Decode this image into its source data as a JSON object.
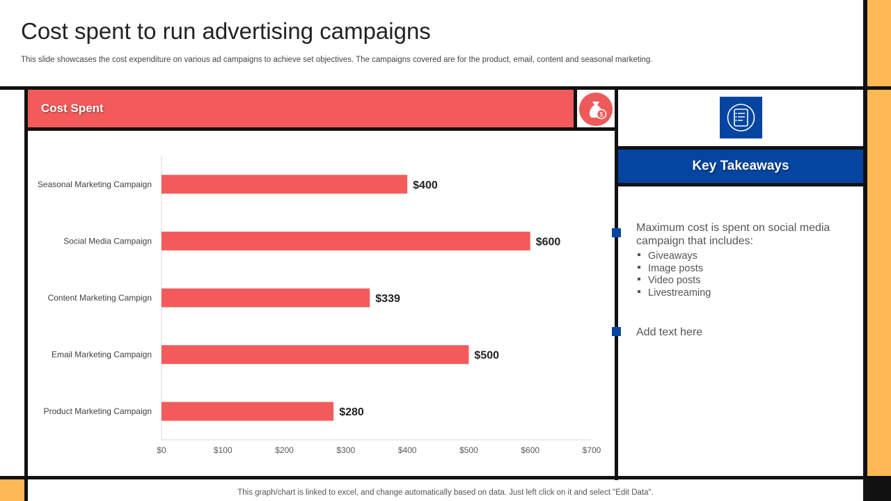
{
  "page": {
    "title": "Cost spent to run advertising campaigns",
    "subtitle": "This slide showcases the cost expenditure on various ad campaigns to achieve set objectives. The campaigns covered are for the product, email, content and seasonal marketing.",
    "footer_note": "This graph/chart is linked to excel,  and change automatically based on data. Just left click on it and select \"Edit Data\"."
  },
  "panel": {
    "header": "Cost Spent",
    "header_icon": "money-bag-icon"
  },
  "key_takeaways": {
    "icon": "document-list-icon",
    "header": "Key Takeaways",
    "point1": {
      "text": "Maximum  cost is spent on social media campaign that  includes:",
      "items": [
        "Giveaways",
        "Image posts",
        "Video posts",
        "Livestreaming"
      ]
    },
    "point2": {
      "text": "Add text here"
    }
  },
  "colors": {
    "bar": "#f35b5b",
    "accent_blue": "#0445a1",
    "accent_orange": "#ffb954",
    "frame": "#111111"
  },
  "chart_data": {
    "type": "bar",
    "orientation": "horizontal",
    "categories": [
      "Seasonal Marketing Campaign",
      "Social Media Campaign",
      "Content Marketing Campign",
      "Email Marketing Campaign",
      "Product Marketing Campaign"
    ],
    "values": [
      400,
      600,
      339,
      500,
      280
    ],
    "value_labels": [
      "$400",
      "$600",
      "$339",
      "$500",
      "$280"
    ],
    "x_ticks": [
      0,
      100,
      200,
      300,
      400,
      500,
      600,
      700
    ],
    "x_tick_labels": [
      "$0",
      "$100",
      "$200",
      "$300",
      "$400",
      "$500",
      "$600",
      "$700"
    ],
    "xlim": [
      0,
      700
    ],
    "grid": false,
    "legend": "none"
  }
}
